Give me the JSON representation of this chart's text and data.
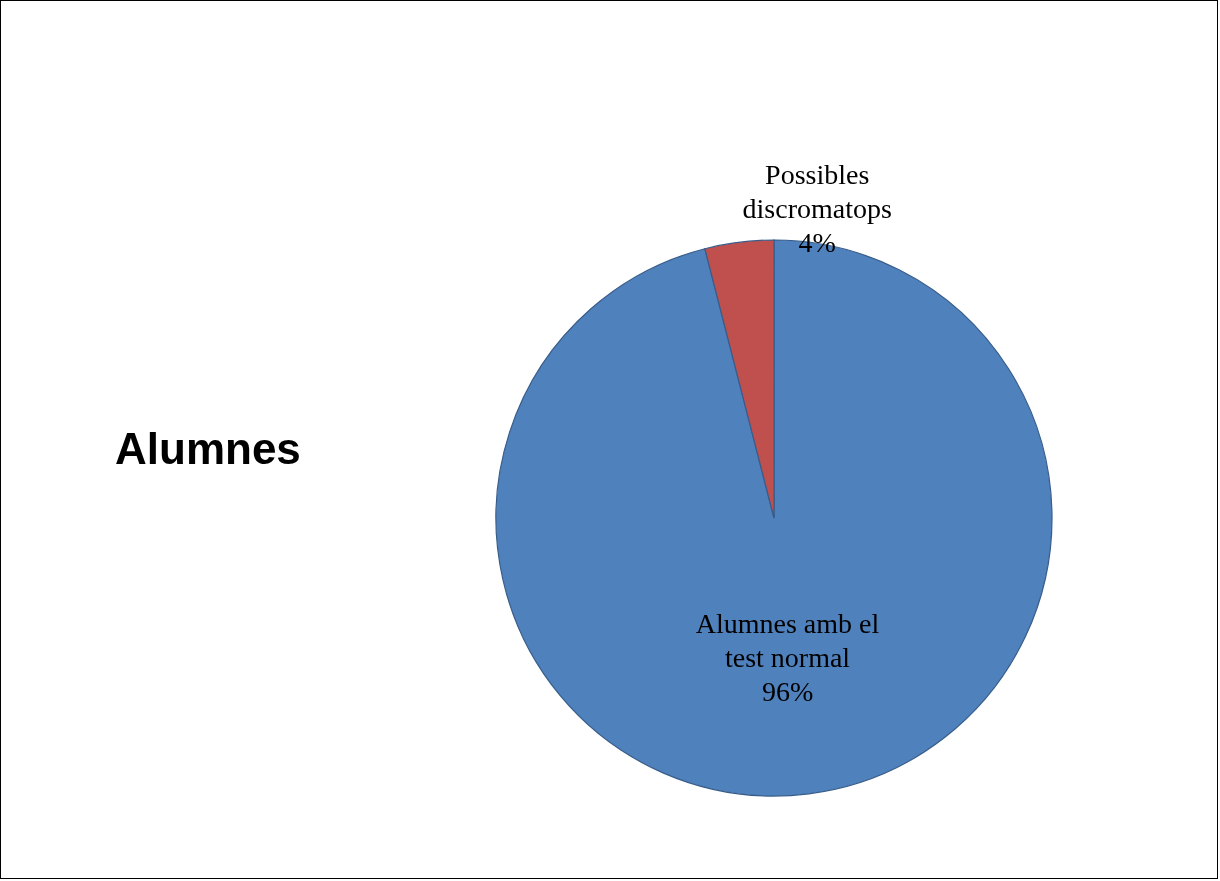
{
  "chart_data": {
    "type": "pie",
    "title": "Alumnes",
    "categories": [
      "Alumnes amb el test normal",
      "Possibles discromatops"
    ],
    "values": [
      96,
      4
    ],
    "colors": [
      "#4f81bd",
      "#c0504d"
    ],
    "value_labels": [
      "96%",
      "4%"
    ]
  }
}
